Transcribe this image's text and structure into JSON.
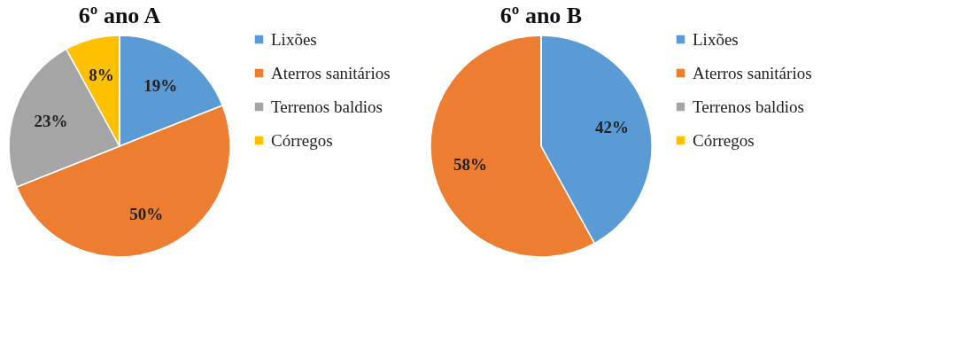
{
  "chart_data": [
    {
      "type": "pie",
      "title": "6º ano A",
      "categories": [
        "Lixões",
        "Aterros sanitários",
        "Terrenos baldios",
        "Córregos"
      ],
      "values": [
        19,
        50,
        23,
        8
      ],
      "colors": [
        "#5b9bd5",
        "#ed7d31",
        "#a5a5a5",
        "#ffc000"
      ],
      "value_labels": [
        "19%",
        "50%",
        "23%",
        "8%"
      ],
      "legend": "right"
    },
    {
      "type": "pie",
      "title": "6º ano B",
      "categories": [
        "Lixões",
        "Aterros sanitários",
        "Terrenos baldios",
        "Córregos"
      ],
      "values": [
        42,
        58,
        0,
        0
      ],
      "colors": [
        "#5b9bd5",
        "#ed7d31",
        "#a5a5a5",
        "#ffc000"
      ],
      "value_labels": [
        "42%",
        "58%",
        null,
        null
      ],
      "legend": "right"
    }
  ]
}
